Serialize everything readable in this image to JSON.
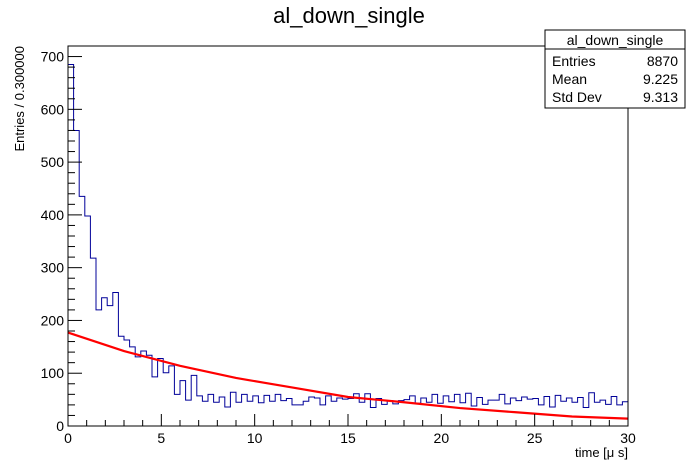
{
  "chart_data": {
    "type": "histogram",
    "title": "al_down_single",
    "xlabel": "time [μ s]",
    "ylabel": "Entries / 0.300000",
    "xlim": [
      0,
      30
    ],
    "ylim": [
      0,
      720
    ],
    "bin_width": 0.3,
    "x_ticks": [
      0,
      5,
      10,
      15,
      20,
      25,
      30
    ],
    "y_ticks": [
      0,
      100,
      200,
      300,
      400,
      500,
      600,
      700
    ],
    "grid": false,
    "stats_box": {
      "title": "al_down_single",
      "rows": [
        {
          "label": "Entries",
          "value": "8870"
        },
        {
          "label": "Mean",
          "value": "9.225"
        },
        {
          "label": "Std Dev",
          "value": "9.313"
        }
      ],
      "placement": "top-right"
    },
    "series": [
      {
        "type": "histogram",
        "color": "#000099",
        "values": [
          685,
          560,
          435,
          398,
          318,
          220,
          243,
          228,
          253,
          170,
          163,
          150,
          131,
          142,
          134,
          93,
          128,
          101,
          114,
          60,
          86,
          49,
          96,
          57,
          47,
          60,
          45,
          55,
          36,
          64,
          45,
          60,
          47,
          57,
          44,
          58,
          47,
          60,
          48,
          52,
          40,
          40,
          47,
          55,
          53,
          40,
          57,
          47,
          53,
          51,
          52,
          61,
          45,
          61,
          35,
          52,
          41,
          48,
          42,
          48,
          50,
          57,
          43,
          53,
          45,
          60,
          43,
          57,
          46,
          60,
          44,
          62,
          38,
          54,
          41,
          49,
          49,
          60,
          42,
          53,
          48,
          55,
          51,
          52,
          40,
          56,
          36,
          58,
          47,
          53,
          45,
          54,
          35,
          63,
          45,
          49,
          41,
          56,
          40,
          46
        ]
      },
      {
        "type": "line",
        "color": "#ff0000",
        "function": "exponential decay fit",
        "points": [
          [
            0,
            177
          ],
          [
            3,
            142
          ],
          [
            6,
            114
          ],
          [
            9,
            91
          ],
          [
            12,
            73
          ],
          [
            15,
            55
          ],
          [
            18,
            45
          ],
          [
            21,
            34
          ],
          [
            24,
            26
          ],
          [
            27,
            18
          ],
          [
            30,
            14
          ]
        ]
      }
    ]
  }
}
